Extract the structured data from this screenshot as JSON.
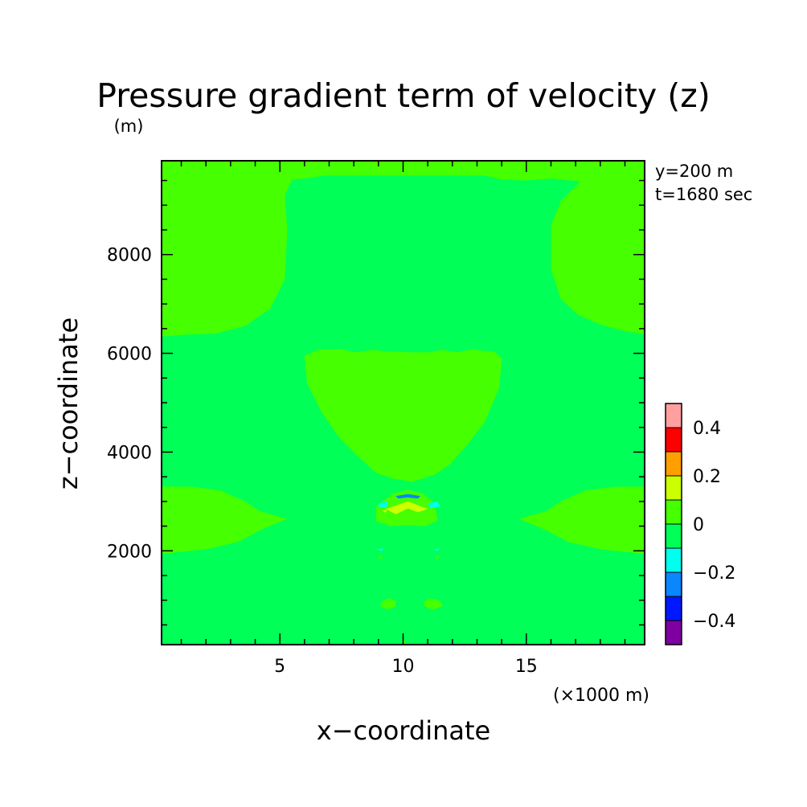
{
  "chart_data": {
    "type": "heatmap",
    "title": "Pressure gradient term of velocity (z)",
    "ylabel": "z−coordinate",
    "yunit": "(m)",
    "xlabel": "x−coordinate",
    "xunit": "(×1000 m)",
    "annotations": [
      "y=200 m",
      "t=1680 sec"
    ],
    "xlim": [
      0.2,
      19.8
    ],
    "ylim": [
      100,
      9900
    ],
    "xticks": [
      5,
      10,
      15
    ],
    "yticks": [
      2000,
      4000,
      6000,
      8000
    ],
    "xtick_labels": [
      "5",
      "10",
      "15"
    ],
    "ytick_labels": [
      "2000",
      "4000",
      "6000",
      "8000"
    ],
    "colorbar": {
      "levels": [
        -0.5,
        -0.4,
        -0.3,
        -0.2,
        -0.1,
        0,
        0.1,
        0.2,
        0.3,
        0.4,
        0.5
      ],
      "colors": [
        "#7f00a0",
        "#0018ff",
        "#0a87ff",
        "#00ffee",
        "#00ff57",
        "#46ff00",
        "#ccff00",
        "#ff9f00",
        "#ff0000",
        "#ff9f9f"
      ],
      "tick_values": [
        -0.4,
        -0.2,
        0,
        0.2,
        0.4
      ],
      "tick_labels": [
        "−0.4",
        "−0.2",
        "0",
        "0.2",
        "0.4"
      ]
    },
    "background_value": -0.05,
    "regions": [
      {
        "name": "upper-plume",
        "value": 0.05,
        "points": [
          [
            6.8,
            9600
          ],
          [
            13.3,
            9600
          ],
          [
            14.0,
            9520
          ],
          [
            15.0,
            9500
          ],
          [
            16.0,
            9540
          ],
          [
            17.2,
            9480
          ],
          [
            16.4,
            9080
          ],
          [
            16.0,
            8600
          ],
          [
            16.0,
            7700
          ],
          [
            16.4,
            7100
          ],
          [
            17.1,
            6780
          ],
          [
            18.0,
            6580
          ],
          [
            19.0,
            6450
          ],
          [
            19.8,
            6390
          ],
          [
            19.8,
            9900
          ],
          [
            0.2,
            9900
          ],
          [
            0.2,
            6340
          ],
          [
            1.2,
            6380
          ],
          [
            2.4,
            6400
          ],
          [
            3.6,
            6560
          ],
          [
            4.6,
            6900
          ],
          [
            5.2,
            7500
          ],
          [
            5.3,
            8500
          ],
          [
            5.2,
            9200
          ],
          [
            5.5,
            9520
          ],
          [
            6.0,
            9540
          ]
        ]
      },
      {
        "name": "central-bulb",
        "value": 0.05,
        "points": [
          [
            6.0,
            5950
          ],
          [
            6.6,
            6080
          ],
          [
            7.6,
            6080
          ],
          [
            8.0,
            6020
          ],
          [
            8.8,
            6070
          ],
          [
            9.3,
            6040
          ],
          [
            10.2,
            6020
          ],
          [
            11.0,
            6020
          ],
          [
            11.6,
            6070
          ],
          [
            12.2,
            6020
          ],
          [
            12.8,
            6080
          ],
          [
            13.7,
            6030
          ],
          [
            14.0,
            5900
          ],
          [
            13.9,
            5300
          ],
          [
            13.3,
            4600
          ],
          [
            12.6,
            4150
          ],
          [
            11.9,
            3750
          ],
          [
            11.3,
            3550
          ],
          [
            10.4,
            3400
          ],
          [
            9.6,
            3460
          ],
          [
            8.9,
            3580
          ],
          [
            8.2,
            3900
          ],
          [
            7.4,
            4300
          ],
          [
            6.7,
            4800
          ],
          [
            6.1,
            5400
          ]
        ]
      },
      {
        "name": "left-lobe",
        "value": 0.05,
        "points": [
          [
            0.2,
            3300
          ],
          [
            1.4,
            3300
          ],
          [
            2.6,
            3220
          ],
          [
            3.6,
            3000
          ],
          [
            4.2,
            2800
          ],
          [
            5.3,
            2650
          ],
          [
            4.2,
            2420
          ],
          [
            3.3,
            2180
          ],
          [
            2.0,
            2030
          ],
          [
            0.2,
            1940
          ]
        ]
      },
      {
        "name": "right-lobe",
        "value": 0.05,
        "points": [
          [
            19.8,
            3300
          ],
          [
            18.6,
            3300
          ],
          [
            17.4,
            3220
          ],
          [
            16.4,
            3000
          ],
          [
            15.8,
            2800
          ],
          [
            14.7,
            2650
          ],
          [
            15.8,
            2420
          ],
          [
            16.7,
            2180
          ],
          [
            18.0,
            2030
          ],
          [
            19.8,
            1940
          ]
        ]
      },
      {
        "name": "center-band",
        "value": 0.05,
        "points": [
          [
            8.9,
            2900
          ],
          [
            9.6,
            3160
          ],
          [
            10.2,
            3240
          ],
          [
            10.8,
            3160
          ],
          [
            11.3,
            2950
          ],
          [
            11.4,
            2620
          ],
          [
            10.9,
            2500
          ],
          [
            10.2,
            2520
          ],
          [
            9.5,
            2500
          ],
          [
            8.9,
            2600
          ]
        ]
      },
      {
        "name": "blue-bar",
        "value": -0.25,
        "points": [
          [
            9.7,
            3110
          ],
          [
            10.2,
            3150
          ],
          [
            10.7,
            3110
          ],
          [
            10.6,
            3060
          ],
          [
            10.2,
            3080
          ],
          [
            9.8,
            3060
          ]
        ]
      },
      {
        "name": "cyan-left",
        "value": -0.15,
        "points": [
          [
            9.0,
            2960
          ],
          [
            9.4,
            3000
          ],
          [
            9.3,
            2860
          ],
          [
            9.0,
            2900
          ]
        ]
      },
      {
        "name": "cyan-right",
        "value": -0.15,
        "points": [
          [
            11.0,
            2960
          ],
          [
            11.4,
            3000
          ],
          [
            11.5,
            2900
          ],
          [
            11.1,
            2860
          ]
        ]
      },
      {
        "name": "yellow-chevron",
        "value": 0.15,
        "points": [
          [
            9.3,
            2850
          ],
          [
            10.2,
            3000
          ],
          [
            11.0,
            2850
          ],
          [
            10.6,
            2780
          ],
          [
            10.2,
            2860
          ],
          [
            9.7,
            2740
          ]
        ]
      },
      {
        "name": "light-mark-left",
        "value": 0.15,
        "points": [
          [
            9.15,
            2820
          ],
          [
            9.35,
            2830
          ],
          [
            9.3,
            2770
          ]
        ]
      },
      {
        "name": "cyan-dot-left",
        "value": -0.15,
        "points": [
          [
            8.9,
            2030
          ],
          [
            9.2,
            2050
          ],
          [
            9.15,
            1990
          ]
        ]
      },
      {
        "name": "cyan-dot-right",
        "value": -0.15,
        "points": [
          [
            11.2,
            2030
          ],
          [
            11.5,
            2050
          ],
          [
            11.4,
            1990
          ]
        ]
      },
      {
        "name": "mark-left-low",
        "value": 0.05,
        "points": [
          [
            8.95,
            1880
          ],
          [
            9.15,
            1900
          ],
          [
            9.1,
            1830
          ]
        ]
      },
      {
        "name": "mark-right-low",
        "value": 0.05,
        "points": [
          [
            11.3,
            1880
          ],
          [
            11.5,
            1900
          ],
          [
            11.4,
            1830
          ]
        ]
      },
      {
        "name": "blob-left-low",
        "value": 0.05,
        "points": [
          [
            9.1,
            950
          ],
          [
            9.4,
            1040
          ],
          [
            9.7,
            990
          ],
          [
            9.7,
            880
          ],
          [
            9.4,
            810
          ],
          [
            9.1,
            870
          ]
        ]
      },
      {
        "name": "blob-right-low",
        "value": 0.05,
        "points": [
          [
            10.8,
            950
          ],
          [
            11.1,
            1040
          ],
          [
            11.5,
            990
          ],
          [
            11.6,
            880
          ],
          [
            11.2,
            810
          ],
          [
            10.9,
            870
          ]
        ]
      },
      {
        "name": "bottom-sliver",
        "value": 0.05,
        "points": [
          [
            9.95,
            100
          ],
          [
            10.1,
            100
          ],
          [
            10.05,
            220
          ]
        ]
      }
    ]
  }
}
